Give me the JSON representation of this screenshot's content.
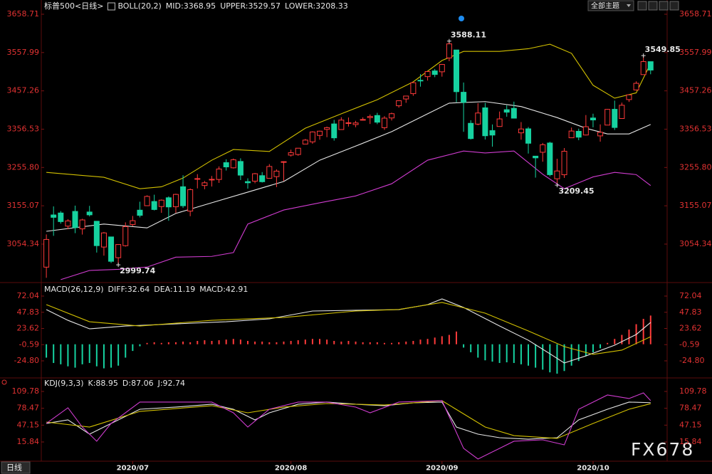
{
  "toolbar": {
    "theme_button": "全部主题"
  },
  "tab": "日线",
  "watermark": "FX678",
  "chart_data": [
    {
      "type": "candlestick",
      "title": "标普500",
      "period": "<日线>",
      "period_color": "#ff9a1a",
      "indicator": "BOLL(20,2)",
      "up_color": "#ff3a3a",
      "down_color": "#16d2a0",
      "xlim": [
        -1,
        86.1
      ],
      "ylim": [
        2956.99,
        3673.68
      ],
      "yticks": [
        3658.71,
        3557.99,
        3457.26,
        3356.53,
        {
          "value": 3255.8,
          "label": "3255.80"
        },
        3155.07,
        3054.34
      ],
      "open": [
        2993.8,
        3131.0,
        3136.1,
        3101.6,
        3140.3,
        3094.4,
        3138.7,
        3114.4,
        3046.6,
        3073.2,
        3018.6,
        3050.2,
        3105.9,
        3143.6,
        3155.3,
        3166.4,
        3153.1,
        3176.2,
        3152.5,
        3205.1,
        3141.1,
        3225.9,
        3208.4,
        3224.2,
        3224.3,
        3268.5,
        3254.9,
        3271.6,
        3218.6,
        3219.8,
        3234.3,
        3227.2,
        3231.8,
        3270.5,
        3288.3,
        3289.9,
        3317.4,
        3323.2,
        3340.1,
        3356.0,
        3370.3,
        3355.5,
        3372.9,
        3368.7,
        3380.9,
        3387.0,
        3392.5,
        3360.5,
        3386.0,
        3418.1,
        3435.9,
        3449.9,
        3485.1,
        3494.7,
        3509.7,
        3507.4,
        3543.8,
        3564.7,
        3453.6,
        3371.9,
        3369.8,
        3412.6,
        3352.7,
        3363.6,
        3407.7,
        3411.2,
        3346.9,
        3357.4,
        3285.6,
        3295.8,
        3320.1,
        3226.1,
        3236.7,
        3333.9,
        3350.9,
        3341.2,
        3385.9,
        3338.9,
        3367.3,
        3408.7,
        3384.6,
        3434.3,
        3459.7,
        3500.0,
        3534.0
      ],
      "high": [
        3079.8,
        3153.5,
        3141.2,
        3120.0,
        3155.5,
        3120.9,
        3154.9,
        3115.0,
        3086.3,
        3073.7,
        3053.9,
        3111.5,
        3128.4,
        3165.8,
        3182.6,
        3184.2,
        3171.8,
        3179.8,
        3186.8,
        3235.3,
        3200.9,
        3238.3,
        3220.4,
        3233.5,
        3258.6,
        3277.3,
        3279.3,
        3279.9,
        3227.3,
        3241.4,
        3243.7,
        3264.7,
        3250.9,
        3272.2,
        3302.7,
        3306.8,
        3330.8,
        3351.0,
        3352.5,
        3363.3,
        3381.0,
        3387.9,
        3387.2,
        3378.5,
        3387.6,
        3395.1,
        3399.5,
        3390.8,
        3400.0,
        3432.1,
        3444.2,
        3481.1,
        3501.4,
        3509.2,
        3514.8,
        3528.0,
        3588.11,
        3564.9,
        3479.2,
        3380.0,
        3424.8,
        3425.6,
        3368.9,
        3402.9,
        3419.5,
        3428.9,
        3375.2,
        3362.3,
        3285.6,
        3320.3,
        3323.4,
        3278.7,
        3306.9,
        3360.7,
        3357.9,
        3393.6,
        3397.2,
        3369.1,
        3409.6,
        3431.6,
        3426.3,
        3447.3,
        3482.3,
        3549.85,
        3534.0
      ],
      "low": [
        2965.7,
        3076.1,
        3108.0,
        3093.5,
        3083.1,
        3079.4,
        3127.1,
        3032.1,
        3024.0,
        3004.6,
        2999.74,
        3047.8,
        3101.2,
        3124.5,
        3155.3,
        3142.9,
        3136.5,
        3115.7,
        3136.2,
        3149.4,
        3127.7,
        3200.8,
        3198.6,
        3205.7,
        3215.2,
        3247.8,
        3253.1,
        3222.7,
        3200.1,
        3214.3,
        3216.2,
        3227.2,
        3204.1,
        3220.3,
        3284.5,
        3286.7,
        3317.4,
        3318.1,
        3328.7,
        3335.4,
        3326.4,
        3355.5,
        3363.4,
        3361.6,
        3379.2,
        3370.2,
        3369.7,
        3354.7,
        3379.3,
        3413.1,
        3425.8,
        3444.2,
        3468.3,
        3484.3,
        3493.3,
        3494.6,
        3535.2,
        3427.4,
        3349.6,
        3329.3,
        3366.8,
        3329.3,
        3310.5,
        3363.6,
        3389.2,
        3384.5,
        3328.8,
        3292.4,
        3229.1,
        3270.9,
        3232.6,
        3209.45,
        3228.4,
        3333.9,
        3327.5,
        3340.0,
        3361.4,
        3323.7,
        3367.3,
        3354.5,
        3384.6,
        3428.2,
        3458.1,
        3499.6,
        3500.9
      ],
      "close": [
        3066.6,
        3124.7,
        3113.5,
        3115.3,
        3097.7,
        3117.9,
        3131.3,
        3050.3,
        3083.8,
        3009.1,
        3053.2,
        3100.3,
        3115.9,
        3130.0,
        3179.7,
        3145.3,
        3169.9,
        3152.1,
        3185.0,
        3155.2,
        3197.5,
        3226.6,
        3215.6,
        3224.7,
        3251.8,
        3257.3,
        3276.0,
        3235.7,
        3215.6,
        3239.4,
        3218.4,
        3258.4,
        3246.2,
        3271.1,
        3294.6,
        3306.5,
        3327.8,
        3349.2,
        3351.3,
        3360.5,
        3333.7,
        3380.4,
        3373.4,
        3372.9,
        3382.0,
        3389.8,
        3374.9,
        3385.5,
        3397.2,
        3431.3,
        3443.6,
        3478.7,
        3484.6,
        3508.0,
        3500.3,
        3526.7,
        3580.8,
        3455.1,
        3427.0,
        3331.8,
        3399.0,
        3339.2,
        3341.0,
        3383.5,
        3401.2,
        3385.5,
        3357.0,
        3319.5,
        3281.1,
        3315.6,
        3236.9,
        3246.6,
        3298.5,
        3351.6,
        3335.5,
        3363.0,
        3380.8,
        3348.4,
        3408.6,
        3361.0,
        3419.4,
        3446.8,
        3477.1,
        3534.2,
        3511.9
      ],
      "series": [
        {
          "name": "MID:3368.95",
          "color": "#e6e6e6",
          "x": [
            0,
            8,
            14,
            18,
            23,
            28,
            33,
            38,
            43,
            48,
            53,
            56,
            61,
            66,
            71,
            75,
            78,
            81,
            84
          ],
          "values": [
            3088,
            3107,
            3097,
            3135,
            3163,
            3191,
            3219,
            3275,
            3312,
            3350,
            3397,
            3425,
            3429,
            3416,
            3387,
            3359,
            3344,
            3344,
            3368.95
          ]
        },
        {
          "name": "UPPER:3529.57",
          "color": "#d2c000",
          "x": [
            0,
            8,
            13,
            16,
            19,
            23,
            26,
            31,
            36,
            41,
            46,
            51,
            55,
            58,
            63,
            67,
            70,
            73,
            76,
            79,
            82,
            84
          ],
          "values": [
            3243,
            3230,
            3200,
            3205,
            3228,
            3275,
            3303,
            3298,
            3359,
            3397,
            3434,
            3481,
            3537,
            3561,
            3561,
            3568,
            3580,
            3556,
            3472,
            3438,
            3452,
            3529.57
          ]
        },
        {
          "name": "LOWER:3208.33",
          "color": "#d03cd0",
          "x": [
            2,
            6,
            10,
            14,
            18,
            23,
            26,
            28,
            33,
            38,
            43,
            48,
            53,
            58,
            61,
            65,
            69,
            72,
            76,
            79,
            82,
            84
          ],
          "values": [
            2961,
            2985,
            2988,
            2994,
            3020,
            3022,
            3032,
            3107,
            3144,
            3163,
            3181,
            3213,
            3275,
            3299,
            3294,
            3299,
            3238,
            3200,
            3231,
            3243,
            3237,
            3208.33
          ]
        }
      ],
      "annotations": [
        {
          "x": 56,
          "value": 3588.11,
          "color": "#ff4a4a"
        },
        {
          "x": 83,
          "value": 3549.85,
          "color": "#ff4a4a"
        },
        {
          "x": 71,
          "value": 3209.45,
          "color": "#3cc8a0"
        },
        {
          "x": 10,
          "value": 2999.74,
          "color": "#3cc8a0"
        }
      ]
    },
    {
      "type": "macd",
      "title": "MACD(26,12,9)",
      "xlim": [
        -1,
        86.1
      ],
      "ylim": [
        -49.27,
        89.07
      ],
      "yticks": [
        72.04,
        47.83,
        23.62,
        -0.59,
        {
          "value": -24.8,
          "label": "-24.80"
        }
      ],
      "series": [
        {
          "name": "DIFF:32.64",
          "color": "#e6e6e6",
          "x": [
            0,
            3,
            6,
            11,
            18,
            25,
            31,
            37,
            43,
            49,
            53,
            55,
            58,
            63,
            67,
            70,
            72,
            75,
            79,
            82,
            84
          ],
          "values": [
            51.8,
            35.8,
            23.1,
            27.3,
            30.5,
            33.7,
            38.0,
            49.7,
            50.8,
            51.8,
            59.3,
            67.8,
            55.0,
            27.3,
            6.0,
            -14.2,
            -28.0,
            -17.4,
            -1.4,
            14.6,
            32.64
          ]
        },
        {
          "name": "DEA:11.19",
          "color": "#d2c000",
          "x": [
            0,
            6,
            13,
            23,
            33,
            43,
            49,
            55,
            61,
            67,
            72,
            76,
            80,
            84
          ],
          "values": [
            59.3,
            33.7,
            27.3,
            35.8,
            40.1,
            49.7,
            52.0,
            62.5,
            46.5,
            19.9,
            -3.5,
            -15.2,
            -8.8,
            11.19
          ]
        }
      ],
      "bars": {
        "name": "MACD:42.91",
        "label_color": "#d03cd0",
        "up_color": "#ff3a3a",
        "down_color": "#16d2a0",
        "values": [
          -20,
          -28,
          -30,
          -33,
          -35,
          -30,
          -28,
          -33,
          -36,
          -35,
          -32,
          -20,
          -10,
          -3,
          2,
          3,
          2,
          3,
          3,
          4,
          3,
          5,
          6,
          5,
          6,
          7,
          8,
          7,
          5,
          4,
          4,
          3,
          3,
          4,
          5,
          6,
          7,
          8,
          8,
          7,
          5,
          4,
          5,
          4,
          3,
          3,
          3,
          2,
          2,
          3,
          4,
          5,
          7,
          8,
          10,
          12,
          14,
          19,
          -5,
          -12,
          -20,
          -24,
          -26,
          -28,
          -27,
          -28,
          -30,
          -32,
          -35,
          -38,
          -42,
          -44,
          -40,
          -32,
          -25,
          -18,
          -12,
          -6,
          2,
          8,
          14,
          22,
          30,
          38,
          42.91
        ]
      }
    },
    {
      "type": "line",
      "title": "KDJ(9,3,3)",
      "xlim": [
        -1,
        86.1
      ],
      "ylim": [
        -18.56,
        116.4
      ],
      "yticks": [
        109.78,
        78.47,
        47.15,
        15.84
      ],
      "xticks": [
        {
          "value": 12,
          "label": "2020/07"
        },
        {
          "value": 34,
          "label": "2020/08"
        },
        {
          "value": 55,
          "label": "2020/09"
        },
        {
          "value": 76,
          "label": "2020/10"
        }
      ],
      "series": [
        {
          "name": "K:88.95",
          "color": "#e6e6e6",
          "x": [
            0,
            3,
            6,
            8,
            13,
            18,
            23,
            26,
            29,
            31,
            35,
            39,
            43,
            47,
            51,
            55,
            57,
            60,
            63,
            67,
            71,
            74,
            78,
            81,
            84
          ],
          "values": [
            50.3,
            56.9,
            30.4,
            43.6,
            76.7,
            80.7,
            86.0,
            76.7,
            56.9,
            70.1,
            86.0,
            90.0,
            86.0,
            83.3,
            88.6,
            90.0,
            43.6,
            30.4,
            23.8,
            21.1,
            23.8,
            56.9,
            76.7,
            90.0,
            88.95
          ]
        },
        {
          "name": "D:87.06",
          "color": "#d2c000",
          "x": [
            0,
            6,
            13,
            23,
            28,
            33,
            39,
            47,
            55,
            61,
            65,
            71,
            76,
            81,
            84
          ],
          "values": [
            52.9,
            43.6,
            72.7,
            83.3,
            70.1,
            80.7,
            87.3,
            84.6,
            92.6,
            43.6,
            27.7,
            22.5,
            50.3,
            76.7,
            87.06
          ]
        },
        {
          "name": "J:92.74",
          "color": "#d03cd0",
          "x": [
            0,
            3,
            5,
            7,
            9,
            13,
            18,
            23,
            26,
            28,
            31,
            35,
            39,
            43,
            45,
            49,
            55,
            58,
            60,
            63,
            65,
            69,
            72,
            74,
            78,
            81,
            83,
            84
          ],
          "values": [
            50.3,
            79.4,
            43.6,
            17.2,
            50.3,
            90.0,
            90.0,
            90.0,
            70.1,
            43.6,
            76.7,
            90.0,
            90.0,
            80.7,
            70.1,
            90.0,
            92.6,
            4.0,
            -15.9,
            4.0,
            17.2,
            19.8,
            10.5,
            76.7,
            103.2,
            96.6,
            107.1,
            92.74
          ]
        }
      ]
    }
  ]
}
